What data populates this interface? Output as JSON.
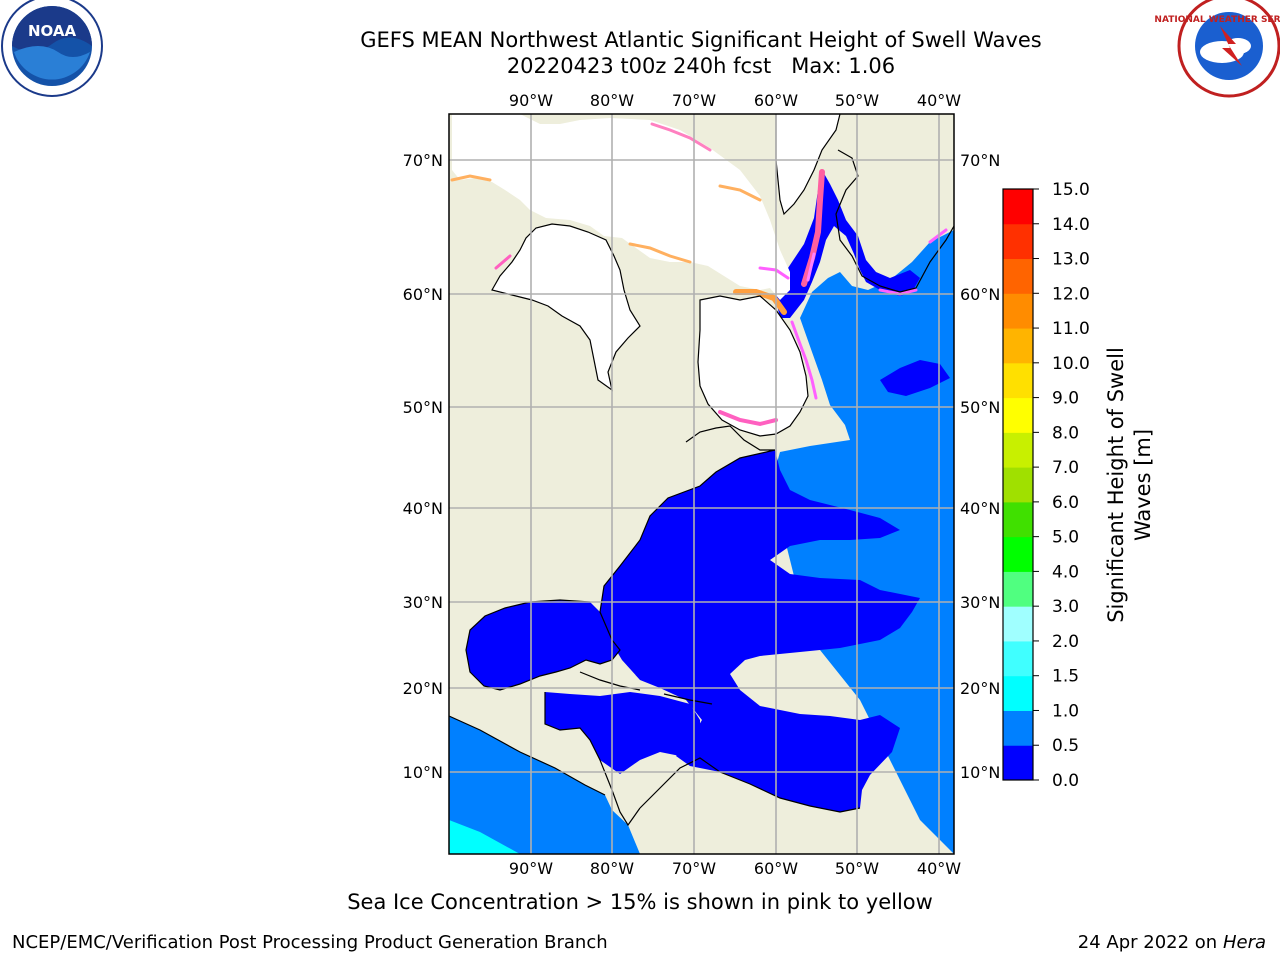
{
  "header": {
    "title": "GEFS MEAN Northwest Atlantic Significant Height of Swell Waves",
    "subtitle": "20220423 t00z 240h fcst   Max: 1.06"
  },
  "logos": {
    "left": {
      "name": "noaa-logo",
      "text": "NOAA"
    },
    "right": {
      "name": "nws-logo",
      "text": "NATIONAL WEATHER SERVICE"
    }
  },
  "map": {
    "lon_labels": [
      "90°W",
      "80°W",
      "70°W",
      "60°W",
      "50°W",
      "40°W"
    ],
    "lat_labels": [
      "70°N",
      "60°N",
      "50°N",
      "40°N",
      "30°N",
      "20°N",
      "10°N"
    ],
    "colors": {
      "land": "#eeeedc",
      "ice_land": "#ffffff",
      "grid": "#b0b0b0",
      "coast": "#000000"
    }
  },
  "colorbar": {
    "label_line1": "Significant Height of Swell",
    "label_line2": "Waves [m]",
    "ticks": [
      "0.0",
      "0.5",
      "1.0",
      "1.5",
      "2.0",
      "3.0",
      "4.0",
      "5.0",
      "6.0",
      "7.0",
      "8.0",
      "9.0",
      "10.0",
      "11.0",
      "12.0",
      "13.0",
      "14.0",
      "15.0"
    ],
    "colors": [
      "#0000ff",
      "#0080ff",
      "#00ffff",
      "#40ffff",
      "#a0ffff",
      "#50ff80",
      "#00ff00",
      "#40e000",
      "#a0e000",
      "#c8f000",
      "#ffff00",
      "#ffe000",
      "#ffb400",
      "#ff8c00",
      "#ff6400",
      "#ff3000",
      "#ff0000"
    ]
  },
  "footer": {
    "note": "Sea Ice Concentration > 15% is shown in pink to yellow",
    "credit_left": "NCEP/EMC/Verification Post Processing Product Generation Branch",
    "date": "24 Apr 2022 on ",
    "host": "Hera"
  }
}
